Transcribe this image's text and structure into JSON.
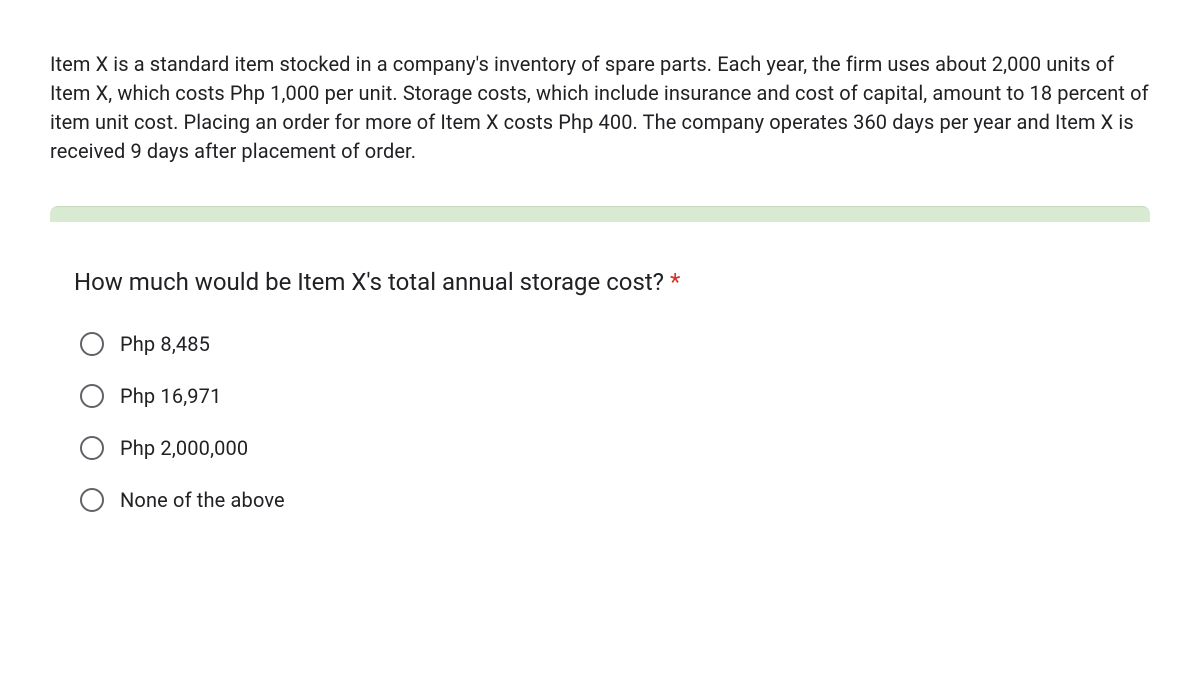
{
  "intro": {
    "text": "Item X is a standard item stocked in a company's inventory of spare parts. Each year, the firm uses about 2,000 units of Item X, which costs Php 1,000 per unit. Storage costs, which include insurance and cost of capital, amount to 18 percent of item unit cost. Placing an order for more of Item X costs Php 400. The company operates 360 days per year and Item X is received 9 days after placement of order."
  },
  "question": {
    "text": "How much would be Item X's total annual storage cost?",
    "required_marker": "*",
    "options": [
      {
        "label": "Php 8,485"
      },
      {
        "label": "Php 16,971"
      },
      {
        "label": "Php 2,000,000"
      },
      {
        "label": "None of the above"
      }
    ]
  },
  "style": {
    "divider_color": "#d9ead3",
    "radio_border_color": "#5f6368",
    "text_color": "#202124",
    "asterisk_color": "#d93025",
    "intro_fontsize": 20,
    "question_fontsize": 24,
    "option_fontsize": 20
  }
}
